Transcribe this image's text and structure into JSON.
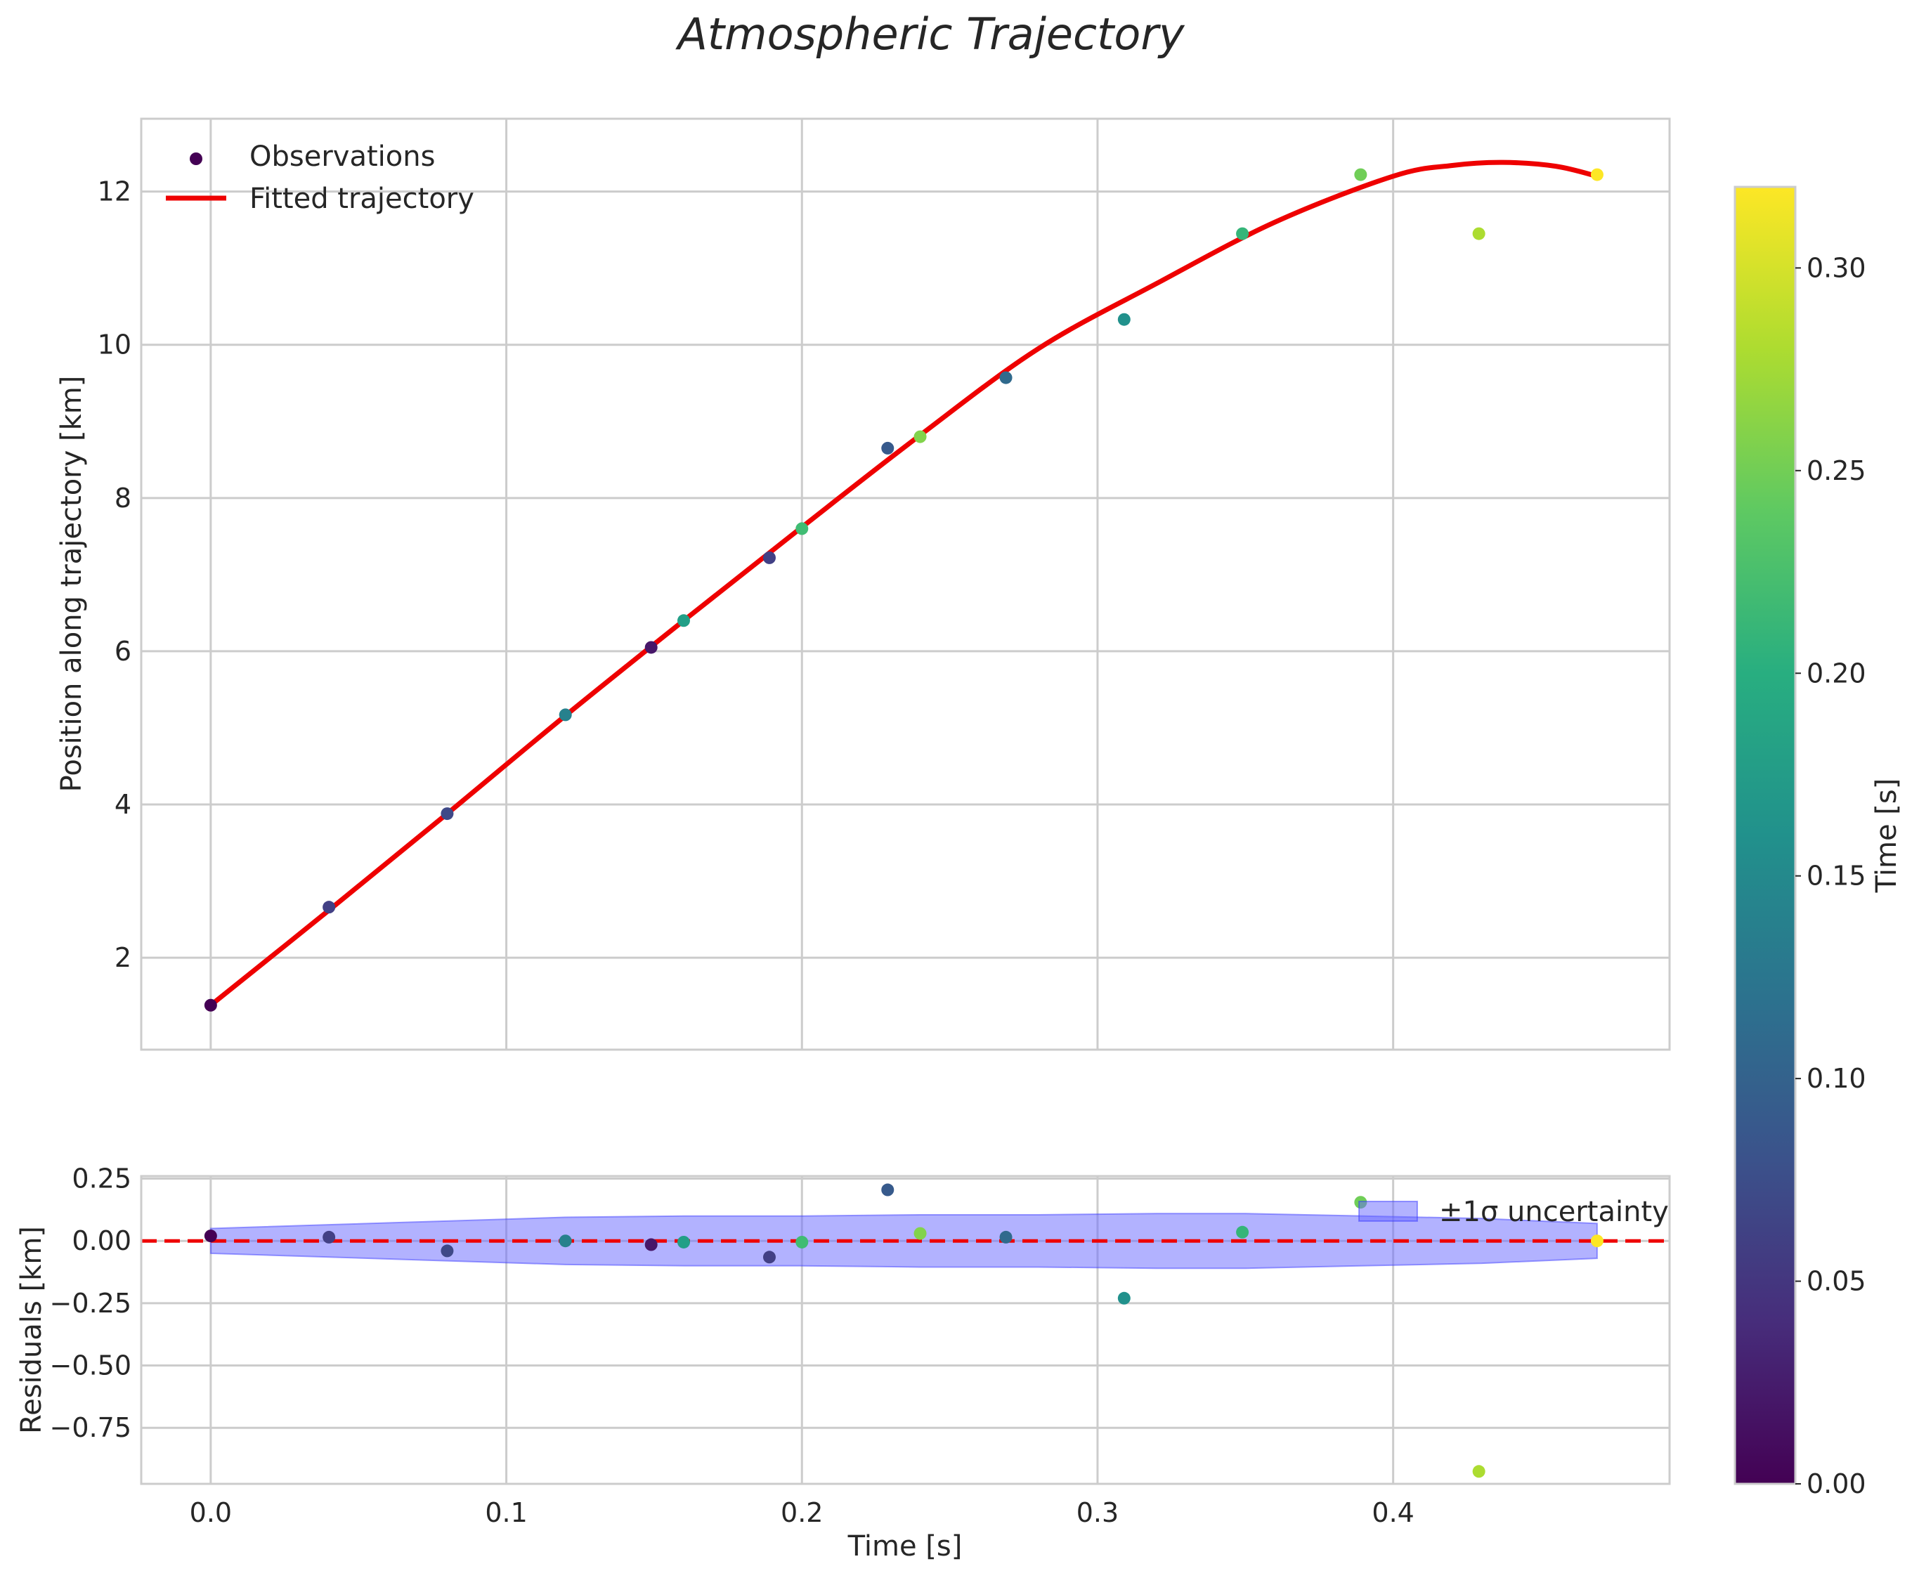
{
  "title": "Atmospheric Trajectory",
  "chart_data": [
    {
      "panel": "top",
      "type": "scatter+line",
      "xlabel": "",
      "ylabel": "Position along trajectory [km]",
      "xlim": [
        -0.0235,
        0.4935
      ],
      "ylim": [
        0.8,
        12.95
      ],
      "xticks": [
        0.0,
        0.1,
        0.2,
        0.3,
        0.4
      ],
      "yticks": [
        2,
        4,
        6,
        8,
        10,
        12
      ],
      "ytick_labels": [
        "2",
        "4",
        "6",
        "8",
        "10",
        "12"
      ],
      "grid": true,
      "legend_position": "upper-left",
      "legend": [
        {
          "label": "Observations",
          "kind": "marker"
        },
        {
          "label": "Fitted trajectory",
          "kind": "line"
        }
      ],
      "series": [
        {
          "name": "Observations",
          "kind": "scatter",
          "x": [
            0.0,
            0.04,
            0.08,
            0.12,
            0.149,
            0.16,
            0.189,
            0.2,
            0.229,
            0.24,
            0.269,
            0.309,
            0.349,
            0.389,
            0.429,
            0.469
          ],
          "y": [
            1.38,
            2.66,
            3.88,
            5.17,
            6.05,
            6.4,
            7.22,
            7.6,
            8.65,
            8.8,
            9.57,
            10.33,
            11.45,
            12.22,
            11.45,
            12.22
          ],
          "color_value": [
            0.0,
            0.06,
            0.07,
            0.14,
            0.02,
            0.18,
            0.06,
            0.22,
            0.09,
            0.26,
            0.11,
            0.16,
            0.21,
            0.25,
            0.28,
            0.32
          ]
        },
        {
          "name": "Fitted trajectory",
          "kind": "line",
          "color": "#ee0000",
          "x": [
            0.0,
            0.04,
            0.08,
            0.12,
            0.16,
            0.2,
            0.24,
            0.28,
            0.32,
            0.36,
            0.4,
            0.42,
            0.437,
            0.455,
            0.469
          ],
          "y": [
            1.38,
            2.62,
            3.88,
            5.16,
            6.4,
            7.62,
            8.82,
            9.95,
            10.8,
            11.6,
            12.2,
            12.34,
            12.38,
            12.33,
            12.2
          ]
        }
      ]
    },
    {
      "panel": "bottom",
      "type": "scatter+band",
      "xlabel": "Time [s]",
      "ylabel": "Residuals [km]",
      "xlim": [
        -0.0235,
        0.4935
      ],
      "ylim": [
        -0.975,
        0.26
      ],
      "xticks": [
        0.0,
        0.1,
        0.2,
        0.3,
        0.4
      ],
      "xtick_labels": [
        "0.0",
        "0.1",
        "0.2",
        "0.3",
        "0.4"
      ],
      "yticks": [
        0.25,
        0.0,
        -0.25,
        -0.5,
        -0.75
      ],
      "ytick_labels": [
        "0.25",
        "0.00",
        "−0.25",
        "−0.50",
        "−0.75"
      ],
      "grid": true,
      "legend_position": "upper-right",
      "legend": [
        {
          "label": "±1σ uncertainty",
          "kind": "patch"
        }
      ],
      "zero_line": {
        "y": 0,
        "style": "dashed",
        "color": "#ee0000"
      },
      "band": {
        "name": "±1σ uncertainty",
        "color": "#6666ff",
        "x": [
          0.0,
          0.04,
          0.08,
          0.12,
          0.16,
          0.2,
          0.24,
          0.28,
          0.32,
          0.35,
          0.39,
          0.43,
          0.469
        ],
        "sigma": [
          0.05,
          0.065,
          0.08,
          0.095,
          0.1,
          0.1,
          0.105,
          0.105,
          0.11,
          0.11,
          0.1,
          0.09,
          0.07
        ]
      },
      "series": [
        {
          "name": "Residuals",
          "kind": "scatter",
          "x": [
            0.0,
            0.04,
            0.08,
            0.12,
            0.149,
            0.16,
            0.189,
            0.2,
            0.229,
            0.24,
            0.269,
            0.309,
            0.349,
            0.389,
            0.429,
            0.469
          ],
          "y": [
            0.02,
            0.015,
            -0.04,
            0.0,
            -0.015,
            -0.005,
            -0.065,
            -0.005,
            0.205,
            0.03,
            0.015,
            -0.23,
            0.035,
            0.155,
            -0.925,
            0.0
          ],
          "color_value": [
            0.0,
            0.06,
            0.07,
            0.14,
            0.02,
            0.18,
            0.06,
            0.22,
            0.09,
            0.26,
            0.11,
            0.16,
            0.21,
            0.25,
            0.28,
            0.32
          ]
        }
      ]
    },
    {
      "panel": "colorbar",
      "type": "colorbar",
      "colormap": "viridis",
      "label": "Time [s]",
      "range": [
        0.0,
        0.32
      ],
      "ticks": [
        0.0,
        0.05,
        0.1,
        0.15,
        0.2,
        0.25,
        0.3
      ],
      "tick_labels": [
        "0.00",
        "0.05",
        "0.10",
        "0.15",
        "0.20",
        "0.25",
        "0.30"
      ]
    }
  ]
}
